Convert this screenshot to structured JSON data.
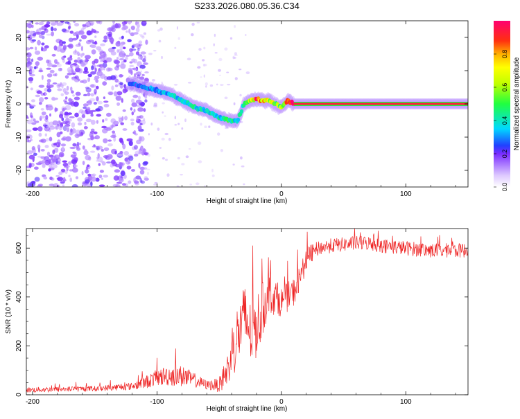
{
  "title": "S233.2026.080.05.36.C34",
  "chart_data": [
    {
      "type": "heatmap",
      "xlabel": "Height of straight line (km)",
      "ylabel": "Frequency (Hz)",
      "xlim": [
        -205,
        150
      ],
      "ylim": [
        -25,
        25
      ],
      "xticks": [
        -200,
        -100,
        0,
        100
      ],
      "yticks": [
        -20,
        -10,
        0,
        10,
        20
      ],
      "colorbar": {
        "label": "Normalized spectral amplitude",
        "range": [
          0.0,
          1.0
        ],
        "ticks": [
          0.0,
          0.2,
          0.4,
          0.6,
          0.8
        ]
      },
      "scatter_noise_region": [
        -205,
        -108
      ],
      "ridge": {
        "x": [
          -120,
          -100,
          -90,
          -80,
          -70,
          -60,
          -50,
          -42,
          -35,
          -30,
          -25,
          -20,
          -15,
          -10,
          -5,
          0,
          5,
          10,
          150
        ],
        "freq": [
          6,
          4,
          3,
          1,
          -1,
          -2,
          -4,
          -5,
          -5,
          0,
          1,
          1.5,
          1,
          1,
          0,
          -1,
          1,
          0,
          0
        ],
        "amplitude": [
          0.25,
          0.3,
          0.35,
          0.38,
          0.4,
          0.38,
          0.4,
          0.45,
          0.35,
          0.5,
          0.6,
          0.85,
          0.75,
          0.7,
          0.6,
          0.6,
          0.9,
          0.95,
          0.95
        ]
      }
    },
    {
      "type": "line",
      "xlabel": "Height of straight line (km)",
      "ylabel": "SNR (10 * v/v)",
      "xlim": [
        -205,
        150
      ],
      "ylim": [
        0,
        680
      ],
      "xticks": [
        -200,
        -100,
        0,
        100
      ],
      "yticks": [
        0,
        200,
        400,
        600
      ],
      "color": "#ee2222",
      "series": [
        {
          "name": "SNR",
          "envelope_x": [
            -205,
            -150,
            -120,
            -110,
            -100,
            -90,
            -80,
            -70,
            -60,
            -50,
            -45,
            -40,
            -35,
            -30,
            -28,
            -25,
            -20,
            -15,
            -10,
            -5,
            0,
            5,
            10,
            15,
            20,
            25,
            30,
            40,
            50,
            60,
            70,
            80,
            90,
            100,
            110,
            120,
            130,
            140,
            150
          ],
          "mean": [
            20,
            25,
            35,
            50,
            70,
            80,
            75,
            60,
            40,
            40,
            80,
            150,
            250,
            300,
            320,
            250,
            280,
            350,
            420,
            400,
            380,
            400,
            420,
            480,
            550,
            580,
            600,
            610,
            615,
            620,
            620,
            610,
            605,
            600,
            595,
            590,
            590,
            590,
            590
          ],
          "spread": [
            15,
            15,
            20,
            35,
            45,
            60,
            60,
            40,
            25,
            40,
            80,
            120,
            180,
            200,
            250,
            180,
            180,
            150,
            120,
            100,
            80,
            80,
            80,
            70,
            60,
            50,
            40,
            40,
            40,
            40,
            40,
            40,
            40,
            40,
            40,
            40,
            40,
            40,
            40
          ]
        }
      ]
    }
  ]
}
